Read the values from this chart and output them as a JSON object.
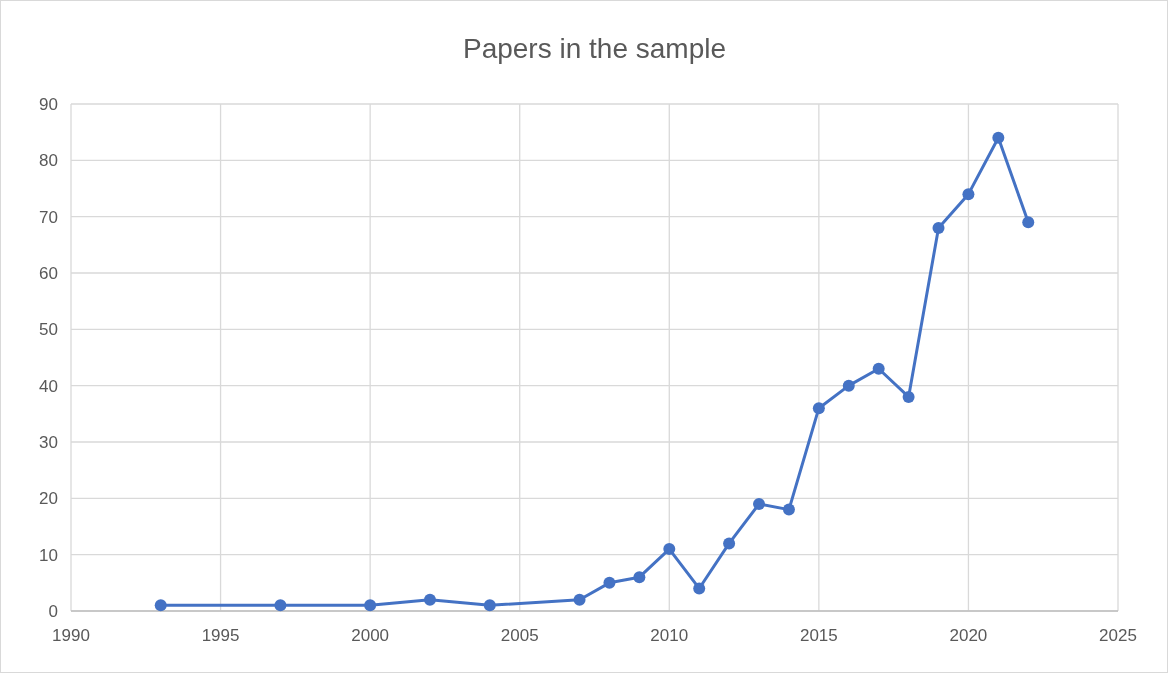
{
  "chart_data": {
    "type": "line",
    "title": "Papers in the sample",
    "x": [
      1993,
      1997,
      2000,
      2002,
      2004,
      2007,
      2008,
      2009,
      2010,
      2011,
      2012,
      2013,
      2014,
      2015,
      2016,
      2017,
      2018,
      2019,
      2020,
      2021,
      2022
    ],
    "series": [
      {
        "color": "#4472c4",
        "values": [
          1,
          1,
          1,
          2,
          1,
          2,
          5,
          6,
          11,
          4,
          12,
          19,
          18,
          36,
          40,
          43,
          38,
          68,
          74,
          84,
          69
        ]
      }
    ],
    "xlim": [
      1990,
      2025
    ],
    "xticks": [
      1990,
      1995,
      2000,
      2005,
      2010,
      2015,
      2020,
      2025
    ],
    "ylim": [
      0,
      90
    ],
    "yticks": [
      0,
      10,
      20,
      30,
      40,
      50,
      60,
      70,
      80,
      90
    ],
    "grid": true,
    "marker": "circle",
    "line_style": "solid"
  }
}
